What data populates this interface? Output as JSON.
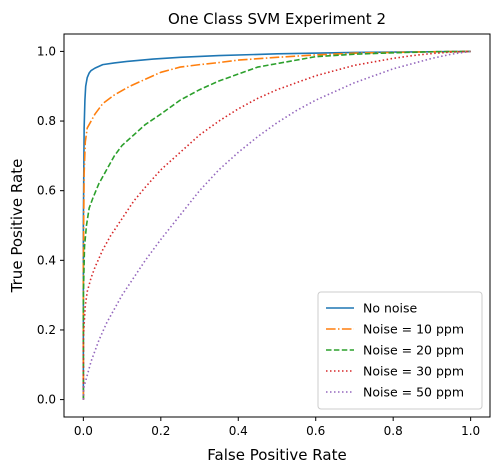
{
  "chart_data": {
    "type": "line",
    "title": "One Class SVM Experiment 2",
    "xlabel": "False Positive Rate",
    "ylabel": "True Positive Rate",
    "xlim": [
      -0.05,
      1.05
    ],
    "ylim": [
      -0.05,
      1.05
    ],
    "xticks": [
      0.0,
      0.2,
      0.4,
      0.6,
      0.8,
      1.0
    ],
    "yticks": [
      0.0,
      0.2,
      0.4,
      0.6,
      0.8,
      1.0
    ],
    "xtick_labels": [
      "0.0",
      "0.2",
      "0.4",
      "0.6",
      "0.8",
      "1.0"
    ],
    "ytick_labels": [
      "0.0",
      "0.2",
      "0.4",
      "0.6",
      "0.8",
      "1.0"
    ],
    "grid": false,
    "legend_position": "lower-right",
    "series": [
      {
        "name": "No noise",
        "color": "#1f77b4",
        "dash": "solid",
        "x": [
          0.0,
          0.0,
          0.002,
          0.004,
          0.006,
          0.01,
          0.015,
          0.02,
          0.03,
          0.05,
          0.08,
          0.12,
          0.18,
          0.25,
          0.35,
          0.5,
          0.7,
          1.0
        ],
        "y": [
          0.0,
          0.5,
          0.78,
          0.86,
          0.9,
          0.925,
          0.938,
          0.945,
          0.952,
          0.962,
          0.967,
          0.972,
          0.978,
          0.983,
          0.988,
          0.993,
          0.997,
          1.0
        ]
      },
      {
        "name": "Noise = 10 ppm",
        "color": "#ff7f0e",
        "dash": "dashdot",
        "x": [
          0.0,
          0.0,
          0.002,
          0.005,
          0.01,
          0.02,
          0.03,
          0.05,
          0.08,
          0.12,
          0.16,
          0.2,
          0.25,
          0.3,
          0.35,
          0.4,
          0.5,
          0.6,
          0.7,
          0.8,
          0.9,
          1.0
        ],
        "y": [
          0.0,
          0.4,
          0.65,
          0.74,
          0.78,
          0.8,
          0.82,
          0.85,
          0.875,
          0.9,
          0.92,
          0.94,
          0.955,
          0.962,
          0.968,
          0.975,
          0.983,
          0.99,
          0.995,
          0.997,
          0.999,
          1.0
        ]
      },
      {
        "name": "Noise = 20 ppm",
        "color": "#2ca02c",
        "dash": "dashed",
        "x": [
          0.0,
          0.0,
          0.003,
          0.008,
          0.015,
          0.025,
          0.04,
          0.06,
          0.08,
          0.1,
          0.13,
          0.16,
          0.2,
          0.25,
          0.3,
          0.35,
          0.4,
          0.45,
          0.5,
          0.55,
          0.6,
          0.7,
          0.8,
          0.9,
          1.0
        ],
        "y": [
          0.0,
          0.3,
          0.44,
          0.5,
          0.55,
          0.58,
          0.62,
          0.66,
          0.7,
          0.73,
          0.76,
          0.79,
          0.82,
          0.86,
          0.89,
          0.915,
          0.935,
          0.955,
          0.965,
          0.975,
          0.985,
          0.992,
          0.996,
          0.999,
          1.0
        ]
      },
      {
        "name": "Noise = 30 ppm",
        "color": "#d62728",
        "dash": "dotted",
        "x": [
          0.0,
          0.0,
          0.005,
          0.01,
          0.02,
          0.03,
          0.05,
          0.07,
          0.1,
          0.13,
          0.16,
          0.2,
          0.25,
          0.3,
          0.35,
          0.4,
          0.45,
          0.5,
          0.55,
          0.6,
          0.65,
          0.7,
          0.75,
          0.8,
          0.85,
          0.9,
          0.95,
          1.0
        ],
        "y": [
          0.0,
          0.18,
          0.27,
          0.31,
          0.35,
          0.38,
          0.43,
          0.47,
          0.52,
          0.57,
          0.61,
          0.66,
          0.71,
          0.76,
          0.8,
          0.835,
          0.865,
          0.89,
          0.91,
          0.93,
          0.945,
          0.96,
          0.97,
          0.98,
          0.988,
          0.994,
          0.998,
          1.0
        ]
      },
      {
        "name": "Noise = 50 ppm",
        "color": "#9467bd",
        "dash": "dotted",
        "x": [
          0.0,
          0.0,
          0.01,
          0.02,
          0.04,
          0.06,
          0.08,
          0.1,
          0.13,
          0.16,
          0.2,
          0.25,
          0.3,
          0.35,
          0.4,
          0.45,
          0.5,
          0.55,
          0.6,
          0.65,
          0.7,
          0.75,
          0.8,
          0.85,
          0.9,
          0.95,
          1.0
        ],
        "y": [
          0.0,
          0.03,
          0.07,
          0.11,
          0.17,
          0.22,
          0.26,
          0.3,
          0.35,
          0.4,
          0.46,
          0.53,
          0.6,
          0.66,
          0.71,
          0.755,
          0.795,
          0.83,
          0.86,
          0.885,
          0.91,
          0.93,
          0.95,
          0.965,
          0.98,
          0.992,
          1.0
        ]
      }
    ]
  }
}
